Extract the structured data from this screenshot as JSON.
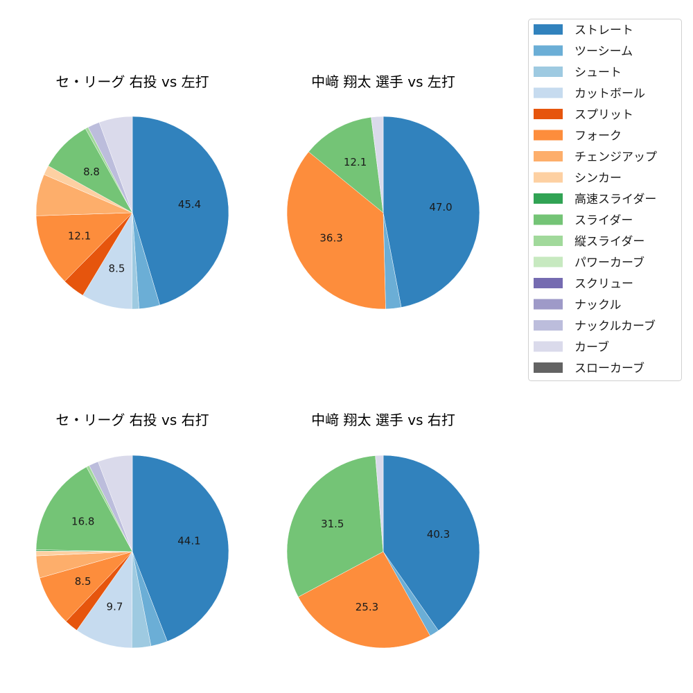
{
  "chart_data": {
    "type": "pie",
    "categories": [
      "ストレート",
      "ツーシーム",
      "シュート",
      "カットボール",
      "スプリット",
      "フォーク",
      "チェンジアップ",
      "シンカー",
      "高速スライダー",
      "スライダー",
      "縦スライダー",
      "パワーカーブ",
      "スクリュー",
      "ナックル",
      "ナックルカーブ",
      "カーブ",
      "スローカーブ"
    ],
    "colors": [
      "#3182bd",
      "#6baed6",
      "#9ecae1",
      "#c6dbef",
      "#e6550d",
      "#fd8d3c",
      "#fdae6b",
      "#fdd0a2",
      "#31a354",
      "#74c476",
      "#a1d99b",
      "#c7e9c0",
      "#756bb1",
      "#9e9ac8",
      "#bcbddc",
      "#dadaeb",
      "#636363"
    ],
    "legend_placement": "top-right",
    "start": "top",
    "direction": "clockwise",
    "charts": [
      {
        "title": "セ・リーグ 右投 vs 左打",
        "values": [
          45.4,
          3.5,
          1.2,
          8.5,
          3.8,
          12.1,
          7.0,
          1.6,
          0,
          8.8,
          0.5,
          0,
          0,
          0,
          2.0,
          5.6,
          0
        ]
      },
      {
        "title": "中﨑 翔太 選手 vs 左打",
        "values": [
          47.0,
          2.6,
          0,
          0,
          0,
          36.3,
          0,
          0,
          0,
          12.1,
          0,
          0,
          0,
          0,
          0,
          2.0,
          0
        ]
      },
      {
        "title": "セ・リーグ 右投 vs 右打",
        "values": [
          44.1,
          2.8,
          3.2,
          9.7,
          2.3,
          8.5,
          3.7,
          0.8,
          0.2,
          16.8,
          0.5,
          0,
          0,
          0,
          1.6,
          5.8,
          0
        ]
      },
      {
        "title": "中﨑 翔太 選手 vs 右打",
        "values": [
          40.3,
          1.6,
          0,
          0,
          0,
          25.3,
          0,
          0,
          0,
          31.5,
          0,
          0,
          0,
          0,
          0,
          1.3,
          0
        ]
      }
    ],
    "label_threshold": 8
  }
}
